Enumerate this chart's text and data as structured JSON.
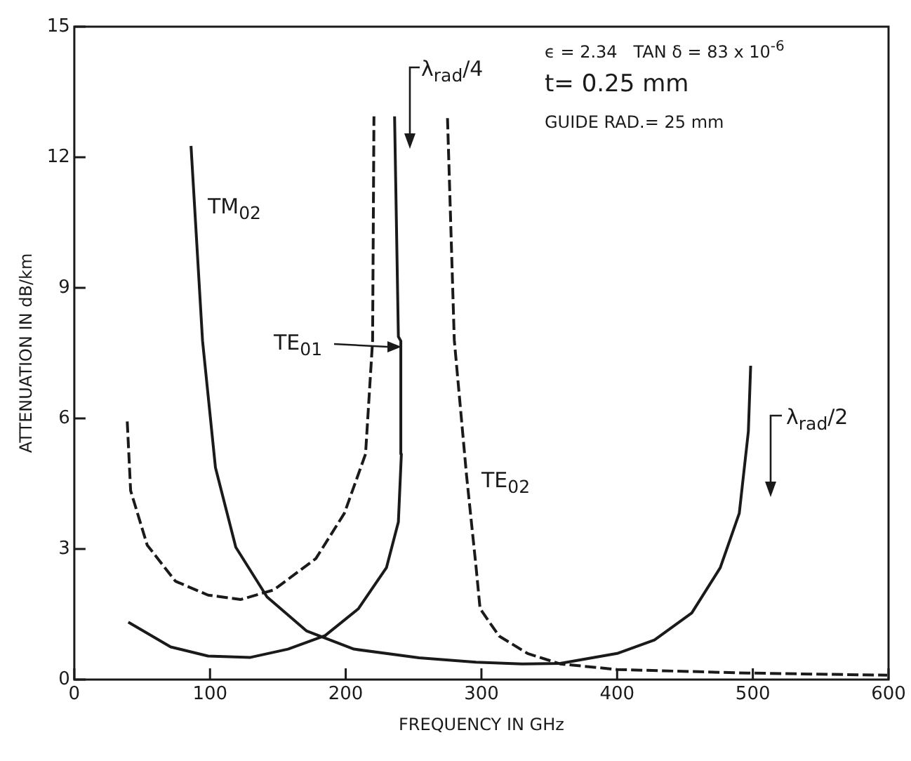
{
  "chart_data": {
    "type": "line",
    "xlabel": "FREQUENCY IN GHz",
    "ylabel": "ATTENUATION IN dB/km",
    "xlim": [
      0,
      600
    ],
    "ylim": [
      0,
      15
    ],
    "xticks": [
      0,
      100,
      200,
      300,
      400,
      500,
      600
    ],
    "yticks": [
      0,
      3,
      6,
      9,
      12,
      15
    ],
    "grid": false,
    "legend": false,
    "marker": "none",
    "series": [
      {
        "color": "#1a1a1a",
        "line_style": "solid",
        "x": [
          86,
          94.5,
          104,
          119,
          142,
          171,
          206,
          254,
          296,
          330,
          358,
          400,
          427.5,
          455,
          476,
          490,
          496.7,
          498.4
        ],
        "values": [
          12.26,
          7.78,
          4.87,
          3.04,
          1.9,
          1.12,
          0.7,
          0.5,
          0.4,
          0.36,
          0.37,
          0.6,
          0.91,
          1.53,
          2.57,
          3.82,
          5.7,
          7.21
        ]
      },
      {
        "color": "#1a1a1a",
        "line_style": "dashed",
        "x": [
          39,
          41.5,
          53.7,
          74.5,
          98.6,
          122.7,
          147,
          178,
          199,
          214.6,
          219.8,
          220.8
        ],
        "values": [
          5.93,
          4.34,
          3.09,
          2.26,
          1.94,
          1.84,
          2.06,
          2.78,
          3.82,
          5.18,
          7.78,
          12.94
        ]
      },
      {
        "color": "#1a1a1a",
        "line_style": "solid",
        "x": [
          39.8,
          71,
          98.6,
          129.8,
          157.5,
          184.8,
          209.4,
          230,
          238.8,
          241,
          240.6,
          238.8,
          236
        ],
        "values": [
          1.32,
          0.75,
          0.54,
          0.51,
          0.7,
          1.01,
          1.63,
          2.57,
          3.62,
          5.18,
          7.78,
          7.88,
          12.94
        ]
      },
      {
        "color": "#1a1a1a",
        "line_style": "dashed",
        "x": [
          275,
          280,
          289,
          296,
          299,
          313,
          334,
          358,
          400,
          496,
          599
        ],
        "values": [
          12.9,
          7.8,
          4.7,
          2.6,
          1.63,
          1.0,
          0.6,
          0.36,
          0.23,
          0.15,
          0.1
        ]
      }
    ],
    "annotations": [
      "TM$_{02}$",
      "TE$_{01}$",
      "TE$_{02}$",
      "λ$_{rad}$/4",
      "λ$_{rad}$/2",
      "ϵ = 2.34   TAN δ = 83 x 10$^{-6}$",
      "t= 0.25 mm",
      "GUIDE RAD.= 25 mm"
    ]
  }
}
